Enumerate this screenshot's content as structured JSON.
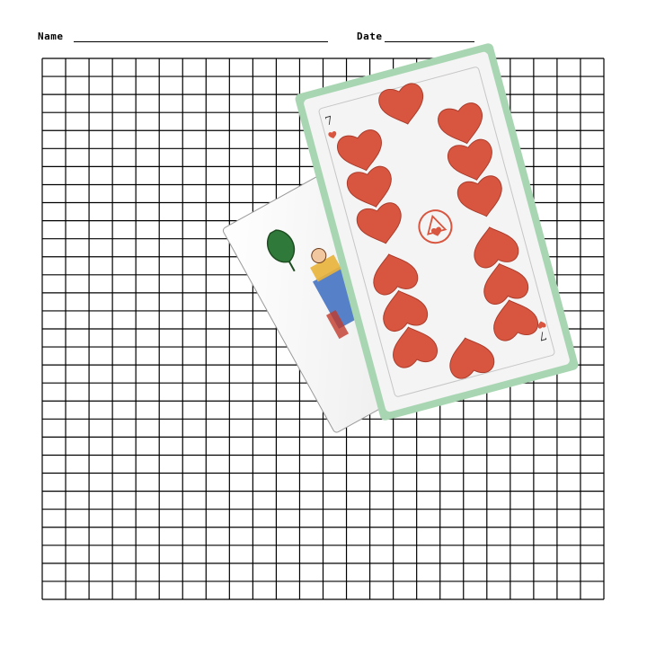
{
  "worksheet": {
    "name_label": "Name",
    "date_label": "Date",
    "grid": {
      "columns": 24,
      "rows": 30,
      "line_color": "#000000"
    }
  },
  "photo": {
    "back_card": {
      "suit": "leaves",
      "rank": "unter",
      "accent_color": "#2f7a3a"
    },
    "front_card": {
      "suit": "hearts",
      "rank_label": "7",
      "pip_count": 14,
      "pip_color": "#d8553f",
      "border_tint": "#a9d6b2"
    }
  }
}
